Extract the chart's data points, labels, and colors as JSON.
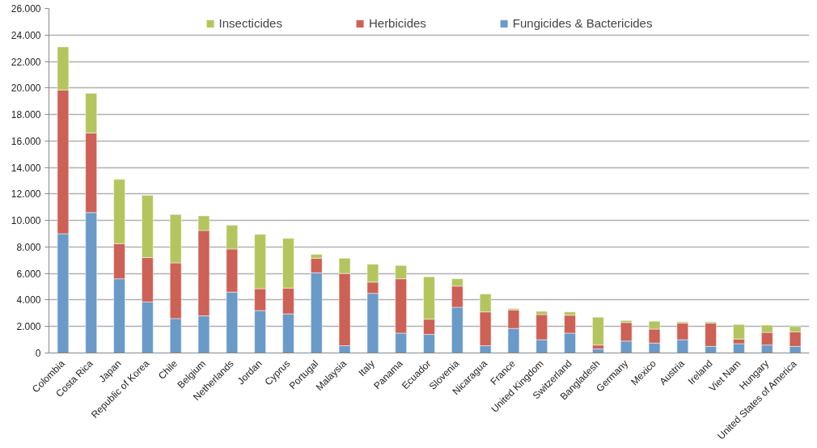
{
  "chart_data": {
    "type": "bar",
    "stacked": true,
    "categories": [
      "Colombia",
      "Costa Rica",
      "Japan",
      "Republic of Korea",
      "Chile",
      "Belgium",
      "Netherlands",
      "Jordan",
      "Cyprus",
      "Portugal",
      "Malaysia",
      "Italy",
      "Panama",
      "Ecuador",
      "Slovenia",
      "Nicaragua",
      "France",
      "United Kingdom",
      "Switzerland",
      "Bangladesh",
      "Germany",
      "Mexico",
      "Austria",
      "Ireland",
      "Viet Nam",
      "Hungary",
      "United States of America"
    ],
    "series": [
      {
        "name": "Fungicides & Bactericides",
        "color": "#6a9ac8",
        "values": [
          9000,
          10600,
          5600,
          3850,
          2600,
          2800,
          4600,
          3200,
          2950,
          6050,
          550,
          4500,
          1500,
          1400,
          3450,
          550,
          1850,
          1000,
          1500,
          300,
          900,
          750,
          1000,
          500,
          700,
          600,
          500
        ]
      },
      {
        "name": "Herbicides",
        "color": "#cd6155",
        "values": [
          10850,
          6000,
          2650,
          3350,
          4200,
          6450,
          3250,
          1650,
          1950,
          1100,
          5450,
          850,
          4100,
          1150,
          1600,
          2550,
          1400,
          1900,
          1350,
          300,
          1400,
          1050,
          1250,
          1750,
          350,
          950,
          1100
        ]
      },
      {
        "name": "Insecticides",
        "color": "#b5c55e",
        "values": [
          3250,
          3000,
          4850,
          4700,
          3650,
          1100,
          1800,
          4100,
          3750,
          300,
          1150,
          1350,
          1000,
          3200,
          550,
          1350,
          100,
          250,
          250,
          2100,
          150,
          600,
          100,
          100,
          1100,
          550,
          400
        ]
      }
    ],
    "ylim": [
      0,
      26000
    ],
    "yticks": [
      {
        "value": 0,
        "label": "0"
      },
      {
        "value": 2000,
        "label": "2.000"
      },
      {
        "value": 4000,
        "label": "4.000"
      },
      {
        "value": 6000,
        "label": "6.000"
      },
      {
        "value": 8000,
        "label": "8.000"
      },
      {
        "value": 10000,
        "label": "10.000"
      },
      {
        "value": 12000,
        "label": "12.000"
      },
      {
        "value": 14000,
        "label": "14.000"
      },
      {
        "value": 16000,
        "label": "16.000"
      },
      {
        "value": 18000,
        "label": "18.000"
      },
      {
        "value": 20000,
        "label": "20.000"
      },
      {
        "value": 22000,
        "label": "22.000"
      },
      {
        "value": 24000,
        "label": "24.000"
      },
      {
        "value": 26000,
        "label": "26.000"
      }
    ],
    "grid": "y",
    "legend": "top"
  }
}
